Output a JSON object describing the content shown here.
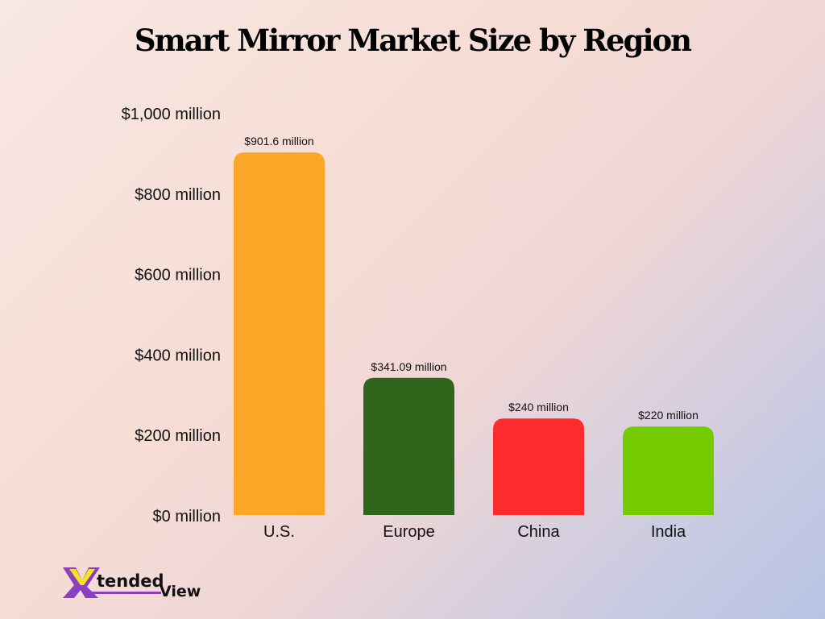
{
  "chart_data": {
    "type": "bar",
    "title": "Smart Mirror Market Size by Region",
    "categories": [
      "U.S.",
      "Europe",
      "China",
      "India"
    ],
    "values": [
      901.6,
      341.09,
      240,
      220
    ],
    "data_labels": [
      "$901.6 million",
      "$341.09 million",
      "$240 million",
      "$220 million"
    ],
    "colors": [
      "#fba626",
      "#2f661b",
      "#fd2b2b",
      "#74cb00"
    ],
    "ylim": [
      0,
      1000
    ],
    "yticks": [
      0,
      200,
      400,
      600,
      800,
      1000
    ],
    "ytick_labels": [
      "$0 million",
      "$200 million",
      "$400 million",
      "$600 million",
      "$800 million",
      "$1,000 million"
    ],
    "xlabel": "",
    "ylabel": "",
    "grid": false,
    "legend": "none"
  },
  "logo": {
    "text": "XtendedView"
  }
}
